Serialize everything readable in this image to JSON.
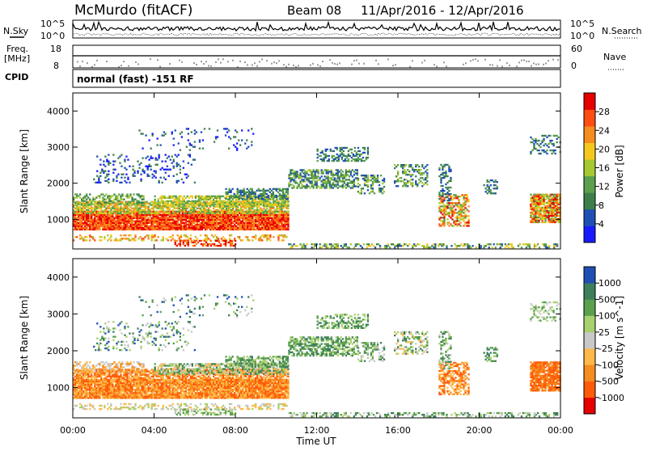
{
  "header": {
    "station": "McMurdo (fitACF)",
    "beam": "Beam 08",
    "date_range": "11/Apr/2016 - 12/Apr/2016",
    "cpid_text": "normal (fast) -151 RF"
  },
  "left_labels": {
    "nsky": "N.Sky",
    "freq": "Freq.",
    "freq_unit": "[MHz]",
    "cpid": "CPID"
  },
  "right_labels": {
    "nsearch": "N.Search",
    "nave": "Nave"
  },
  "noise_axis": {
    "top": "10^5",
    "bottom": "10^0"
  },
  "freq_axis": {
    "top": "18",
    "bottom": "8"
  },
  "nave_axis": {
    "top": "60",
    "bottom": "0"
  },
  "colors": {
    "power_scale": [
      "#1a1aff",
      "#1f4fb5",
      "#3d7f4a",
      "#5aa04d",
      "#a8c832",
      "#f5c81e",
      "#f58c1e",
      "#ff4d12",
      "#e60000"
    ],
    "velocity_scale": [
      "#e60000",
      "#ff5a0a",
      "#f58c1e",
      "#ffb84a",
      "#c8c8c8",
      "#a8d06e",
      "#5aa04d",
      "#3d7f5a",
      "#1f4fb5"
    ]
  },
  "chart_data": [
    {
      "type": "heatmap",
      "name": "power",
      "xlabel": "Time UT",
      "ylabel": "Slant Range [km]",
      "ylim": [
        180,
        4500
      ],
      "y_ticks": [
        "1000",
        "2000",
        "3000",
        "4000"
      ],
      "x_ticks": [
        "00:00",
        "04:00",
        "08:00",
        "12:00",
        "16:00",
        "20:00",
        "00:00"
      ],
      "colorbar_label": "Power [dB]",
      "colorbar_ticks": [
        "4",
        "8",
        "12",
        "16",
        "20",
        "24",
        "28"
      ]
    },
    {
      "type": "heatmap",
      "name": "velocity",
      "xlabel": "Time UT",
      "ylabel": "Slant Range [km]",
      "ylim": [
        180,
        4500
      ],
      "y_ticks": [
        "1000",
        "2000",
        "3000",
        "4000"
      ],
      "x_ticks": [
        "00:00",
        "04:00",
        "08:00",
        "12:00",
        "16:00",
        "20:00",
        "00:00"
      ],
      "colorbar_label": "Velocity [m s^-1]",
      "colorbar_ticks": [
        "-1000",
        "-500",
        "-100",
        "-25",
        "25",
        "100",
        "500",
        "1000"
      ]
    }
  ]
}
